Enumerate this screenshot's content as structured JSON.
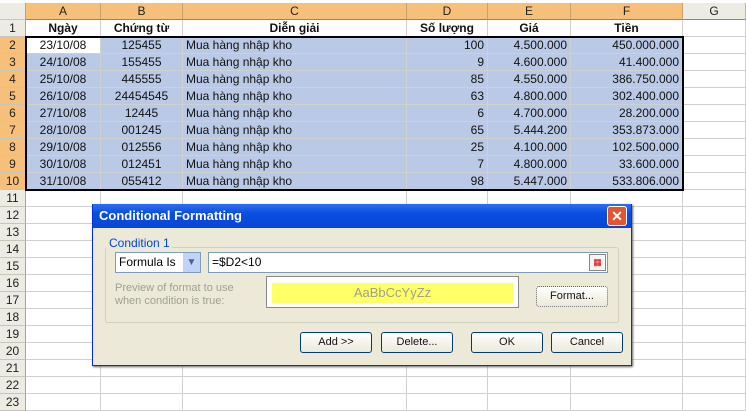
{
  "columns": [
    "A",
    "B",
    "C",
    "D",
    "E",
    "F",
    "G"
  ],
  "headers": [
    "Ngày",
    "Chứng từ",
    "Diễn giải",
    "Số lượng",
    "Giá",
    "Tiền"
  ],
  "rows": [
    [
      "23/10/08",
      "125455",
      "Mua hàng nhập kho",
      "100",
      "4.500.000",
      "450.000.000"
    ],
    [
      "24/10/08",
      "155455",
      "Mua hàng nhập kho",
      "9",
      "4.600.000",
      "41.400.000"
    ],
    [
      "25/10/08",
      "445555",
      "Mua hàng nhập kho",
      "85",
      "4.550.000",
      "386.750.000"
    ],
    [
      "26/10/08",
      "24454545",
      "Mua hàng nhập kho",
      "63",
      "4.800.000",
      "302.400.000"
    ],
    [
      "27/10/08",
      "12445",
      "Mua hàng nhập kho",
      "6",
      "4.700.000",
      "28.200.000"
    ],
    [
      "28/10/08",
      "001245",
      "Mua hàng nhập kho",
      "65",
      "5.444.200",
      "353.873.000"
    ],
    [
      "29/10/08",
      "012556",
      "Mua hàng nhập kho",
      "25",
      "4.100.000",
      "102.500.000"
    ],
    [
      "30/10/08",
      "012451",
      "Mua hàng nhập kho",
      "7",
      "4.800.000",
      "33.600.000"
    ],
    [
      "31/10/08",
      "055412",
      "Mua hàng nhập kho",
      "98",
      "5.447.000",
      "533.806.000"
    ]
  ],
  "row_numbers": [
    "1",
    "2",
    "3",
    "4",
    "5",
    "6",
    "7",
    "8",
    "9",
    "10",
    "11",
    "12",
    "13",
    "14",
    "15",
    "16",
    "17",
    "18",
    "19",
    "20",
    "21",
    "22",
    "23"
  ],
  "dialog": {
    "title": "Conditional Formatting",
    "condition_label": "Condition 1",
    "type_value": "Formula Is",
    "formula": "=$D2<10",
    "preview_label_1": "Preview of format to use",
    "preview_label_2": "when condition is true:",
    "preview_text": "AaBbCcYyZz",
    "format_button": "Format...",
    "add_button": "Add >>",
    "delete_button": "Delete...",
    "ok_button": "OK",
    "cancel_button": "Cancel"
  },
  "colors": {
    "selection": "#b9c9e6",
    "header_selected": "#f7c07a",
    "preview_fill": "#ffff66",
    "titlebar": "#0a4de0"
  }
}
